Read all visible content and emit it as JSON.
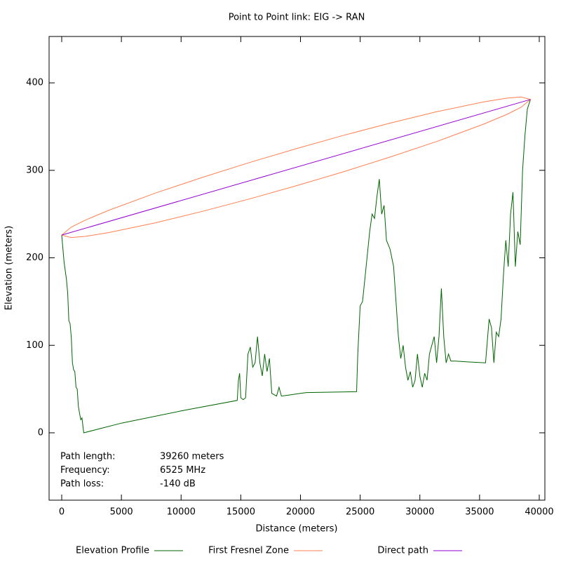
{
  "chart_data": {
    "type": "line",
    "title": "Point to Point link: EIG -> RAN",
    "xlabel": "Distance (meters)",
    "ylabel": "Elevation (meters)",
    "xlim": [
      -1057,
      40470
    ],
    "ylim": [
      -77,
      453
    ],
    "xticks": [
      0,
      5000,
      10000,
      15000,
      20000,
      25000,
      30000,
      35000,
      40000
    ],
    "yticks": [
      0,
      100,
      200,
      300,
      400
    ],
    "info": [
      [
        "Path length:",
        "39260 meters"
      ],
      [
        "Frequency:",
        "6525 MHz"
      ],
      [
        "Path loss:",
        "-140 dB"
      ]
    ],
    "series": [
      {
        "name": "Elevation Profile",
        "color": "#006400",
        "x": [
          0,
          200,
          400,
          500,
          600,
          700,
          800,
          900,
          1000,
          1100,
          1200,
          1300,
          1400,
          1500,
          1600,
          1700,
          1800,
          1850,
          5000,
          10000,
          14700,
          14800,
          14900,
          15000,
          15200,
          15400,
          15600,
          15800,
          16000,
          16200,
          16400,
          16600,
          16800,
          17000,
          17200,
          17400,
          17600,
          18000,
          18200,
          18400,
          19000,
          20000,
          20500,
          24700,
          24800,
          25000,
          25200,
          25500,
          25800,
          26000,
          26200,
          26400,
          26600,
          26800,
          27000,
          27200,
          27500,
          27800,
          28000,
          28200,
          28400,
          28600,
          28800,
          29000,
          29200,
          29400,
          29600,
          29800,
          30000,
          30200,
          30400,
          30600,
          30800,
          31000,
          31200,
          31400,
          31600,
          31800,
          32000,
          32200,
          32400,
          32600,
          33000,
          34000,
          35500,
          35800,
          36000,
          36200,
          36400,
          36600,
          36800,
          37000,
          37200,
          37400,
          37600,
          37800,
          38000,
          38200,
          38400,
          38600,
          38800,
          39000,
          39260
        ],
        "values": [
          226,
          195,
          175,
          160,
          128,
          125,
          110,
          80,
          72,
          70,
          52,
          50,
          30,
          22,
          15,
          17,
          5,
          0,
          11,
          25,
          37,
          60,
          68,
          40,
          38,
          40,
          90,
          98,
          75,
          80,
          110,
          80,
          65,
          90,
          70,
          85,
          45,
          42,
          52,
          42,
          43,
          45,
          46,
          47,
          90,
          145,
          150,
          190,
          230,
          250,
          245,
          270,
          290,
          250,
          260,
          220,
          210,
          190,
          150,
          110,
          85,
          100,
          75,
          60,
          70,
          52,
          60,
          90,
          65,
          52,
          68,
          60,
          90,
          100,
          110,
          80,
          110,
          165,
          110,
          80,
          90,
          82,
          82,
          81,
          80,
          130,
          120,
          80,
          115,
          110,
          130,
          180,
          220,
          190,
          250,
          275,
          190,
          230,
          215,
          300,
          340,
          370,
          381
        ]
      },
      {
        "name": "First Fresnel Zone",
        "color": "#ff7f50",
        "x": [
          0,
          785,
          1963,
          3926,
          7852,
          11778,
          15704,
          19630,
          23556,
          27482,
          31408,
          35334,
          37297,
          38475,
          39260,
          38475,
          37297,
          35334,
          31408,
          27482,
          23556,
          19630,
          15704,
          11778,
          7852,
          3926,
          1963,
          785,
          0
        ],
        "values": [
          226,
          235.0,
          243.0,
          254.2,
          274.0,
          291.9,
          308.8,
          324.7,
          339.8,
          353.9,
          367.0,
          378.2,
          382.5,
          383.8,
          381,
          372.0,
          364.0,
          352.8,
          333.0,
          315.1,
          298.2,
          282.3,
          267.2,
          253.1,
          240.0,
          228.8,
          224.5,
          223.2,
          226
        ]
      },
      {
        "name": "Direct path",
        "color": "#9400d3",
        "x": [
          0,
          39260
        ],
        "values": [
          226,
          381
        ]
      }
    ]
  }
}
